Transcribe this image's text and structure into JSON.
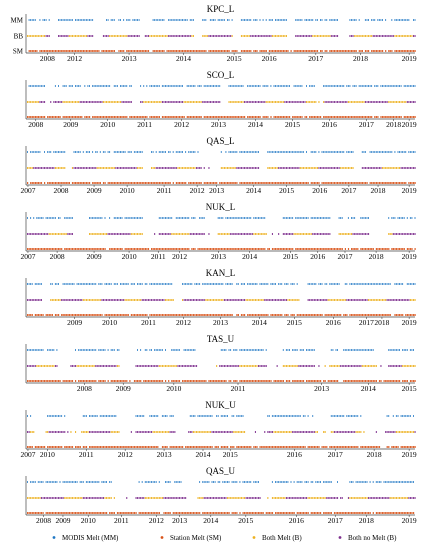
{
  "chart_data": {
    "type": "scatter",
    "row_labels": [
      "MM",
      "BB",
      "SM"
    ],
    "colors": {
      "modis_melt": "#1f77c4",
      "station_melt": "#d95319",
      "both_melt": "#edb120",
      "both_no_melt": "#7e2f8e"
    },
    "legend": {
      "placement": "bottom",
      "entries": [
        {
          "key": "modis_melt",
          "label": "MODIS Melt (MM)"
        },
        {
          "key": "station_melt",
          "label": "Station Melt (SM)"
        },
        {
          "key": "both_melt",
          "label": "Both Melt (B)"
        },
        {
          "key": "both_no_melt",
          "label": "Both no Melt (B)"
        }
      ]
    },
    "panels": [
      {
        "title": "KPC_L",
        "show_row_labels": true,
        "ticks": [
          2008,
          2012,
          2013,
          2014,
          2015,
          2016,
          2017,
          2018,
          2019
        ],
        "gaps": [
          [
            0.06,
            0.08
          ],
          [
            0.17,
            0.2
          ],
          [
            0.29,
            0.31
          ],
          [
            0.43,
            0.45
          ],
          [
            0.53,
            0.55
          ],
          [
            0.67,
            0.69
          ],
          [
            0.8,
            0.83
          ]
        ]
      },
      {
        "title": "SCO_L",
        "show_row_labels": false,
        "ticks": [
          2008,
          2009,
          2010,
          2011,
          2012,
          2013,
          2014,
          2015,
          2016,
          2017,
          2018,
          2019
        ],
        "gaps": [
          [
            0.05,
            0.07
          ],
          [
            0.27,
            0.29
          ],
          [
            0.5,
            0.52
          ],
          [
            0.74,
            0.76
          ]
        ]
      },
      {
        "title": "QAS_L",
        "show_row_labels": false,
        "ticks": [
          2007,
          2008,
          2009,
          2010,
          2011,
          2012,
          2013,
          2014,
          2015,
          2016,
          2017,
          2018,
          2019
        ],
        "gaps": [
          [
            0.1,
            0.12
          ],
          [
            0.3,
            0.32
          ],
          [
            0.45,
            0.5
          ],
          [
            0.6,
            0.62
          ],
          [
            0.84,
            0.86
          ]
        ]
      },
      {
        "title": "NUK_L",
        "show_row_labels": false,
        "ticks": [
          2007,
          2008,
          2009,
          2010,
          2011,
          2012,
          2013,
          2014,
          2015,
          2016,
          2017,
          2018,
          2019
        ],
        "gaps": [
          [
            0.12,
            0.16
          ],
          [
            0.3,
            0.34
          ],
          [
            0.46,
            0.49
          ],
          [
            0.62,
            0.66
          ],
          [
            0.78,
            0.8
          ],
          [
            0.88,
            0.93
          ]
        ]
      },
      {
        "title": "KAN_L",
        "show_row_labels": false,
        "ticks": [
          2009,
          2010,
          2011,
          2012,
          2013,
          2014,
          2015,
          2016,
          2017,
          2018,
          2019
        ],
        "gaps": [
          [
            0.04,
            0.06
          ],
          [
            0.38,
            0.4
          ],
          [
            0.7,
            0.72
          ]
        ]
      },
      {
        "title": "TAS_U",
        "show_row_labels": false,
        "ticks": [
          2008,
          2009,
          2010,
          2011,
          2013,
          2014,
          2015
        ],
        "gaps": [
          [
            0.08,
            0.12
          ],
          [
            0.24,
            0.28
          ],
          [
            0.44,
            0.5
          ],
          [
            0.62,
            0.66
          ],
          [
            0.74,
            0.78
          ],
          [
            0.9,
            0.93
          ]
        ]
      },
      {
        "title": "NUK_U",
        "show_row_labels": false,
        "ticks": [
          2007,
          2010,
          2011,
          2012,
          2013,
          2014,
          2015,
          2016,
          2017,
          2018,
          2019
        ],
        "gaps": [
          [
            0.02,
            0.05
          ],
          [
            0.1,
            0.14
          ],
          [
            0.24,
            0.28
          ],
          [
            0.38,
            0.42
          ],
          [
            0.56,
            0.62
          ],
          [
            0.74,
            0.78
          ],
          [
            0.86,
            0.92
          ]
        ]
      },
      {
        "title": "QAS_U",
        "show_row_labels": false,
        "ticks": [
          2008,
          2009,
          2010,
          2011,
          2012,
          2013,
          2014,
          2015,
          2016,
          2017,
          2018,
          2019
        ],
        "gaps": [
          [
            0.22,
            0.28
          ],
          [
            0.4,
            0.44
          ],
          [
            0.6,
            0.63
          ],
          [
            0.8,
            0.83
          ]
        ]
      }
    ]
  }
}
